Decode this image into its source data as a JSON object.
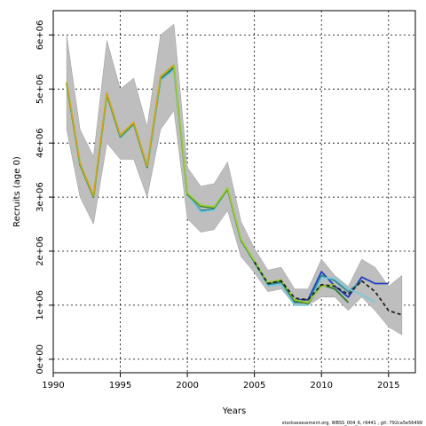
{
  "chart_data": {
    "type": "line",
    "title": "",
    "xlabel": "Years",
    "ylabel": "Recruits (age 0)",
    "xlim": [
      1990,
      2017
    ],
    "ylim": [
      -250000,
      6450000
    ],
    "x_ticks": [
      1990,
      1995,
      2000,
      2005,
      2010,
      2015
    ],
    "y_ticks": [
      0,
      1000000,
      2000000,
      3000000,
      4000000,
      5000000,
      6000000
    ],
    "y_tick_labels": [
      "0e+00",
      "1e+06",
      "2e+06",
      "3e+06",
      "4e+06",
      "5e+06",
      "6e+06"
    ],
    "grid": true,
    "footnote": "stockassessment.org, WBSS_004_6, r9441 , git: 792ca5e56499",
    "band": {
      "x": [
        1991,
        1992,
        1993,
        1994,
        1995,
        1996,
        1997,
        1998,
        1999,
        2000,
        2001,
        2002,
        2003,
        2004,
        2005,
        2006,
        2007,
        2008,
        2009,
        2010,
        2011,
        2012,
        2013,
        2014,
        2015,
        2016
      ],
      "upper": [
        6000000,
        4250000,
        3750000,
        5900000,
        5000000,
        5200000,
        4300000,
        6000000,
        6200000,
        3550000,
        3200000,
        3250000,
        3650000,
        2550000,
        2050000,
        1650000,
        1700000,
        1300000,
        1300000,
        1850000,
        1550000,
        1350000,
        1850000,
        1700000,
        1350000,
        1550000
      ],
      "lower": [
        4250000,
        3000000,
        2500000,
        4000000,
        3700000,
        3700000,
        3000000,
        4250000,
        4600000,
        2600000,
        2350000,
        2400000,
        2750000,
        1900000,
        1600000,
        1250000,
        1300000,
        1000000,
        1000000,
        1150000,
        1150000,
        900000,
        1150000,
        900000,
        600000,
        450000
      ],
      "color": "#bebebe"
    },
    "series": [
      {
        "color": "#1f3fbf",
        "width": 1.8,
        "dash": "",
        "x": [
          1991,
          1992,
          1993,
          1994,
          1995,
          1996,
          1997,
          1998,
          1999,
          2000,
          2001,
          2002,
          2003,
          2004,
          2005,
          2006,
          2007,
          2008,
          2009,
          2010,
          2011,
          2012,
          2013,
          2014,
          2015
        ],
        "y": [
          5100000,
          3600000,
          3000000,
          4900000,
          4100000,
          4350000,
          3550000,
          5200000,
          5400000,
          3050000,
          2850000,
          2800000,
          3150000,
          2200000,
          1800000,
          1400000,
          1450000,
          1100000,
          1100000,
          1620000,
          1350000,
          1150000,
          1520000,
          1400000,
          1400000
        ]
      },
      {
        "color": "#2e8b9a",
        "width": 1.8,
        "dash": "",
        "x": [
          1991,
          1992,
          1993,
          1994,
          1995,
          1996,
          1997,
          1998,
          1999,
          2000,
          2001,
          2002,
          2003,
          2004,
          2005,
          2006,
          2007,
          2008,
          2009,
          2010,
          2011,
          2012,
          2013
        ],
        "y": [
          5100000,
          3600000,
          3000000,
          4900000,
          4100000,
          4350000,
          3550000,
          5150000,
          5400000,
          3050000,
          2750000,
          2780000,
          3150000,
          2200000,
          1800000,
          1380000,
          1420000,
          1050000,
          1050000,
          1550000,
          1450000,
          1250000,
          1450000
        ]
      },
      {
        "color": "#7ec8d8",
        "width": 1.8,
        "dash": "",
        "x": [
          1991,
          1992,
          1993,
          1994,
          1995,
          1996,
          1997,
          1998,
          1999,
          2000,
          2001,
          2002,
          2003,
          2004,
          2005,
          2006,
          2007,
          2008,
          2009,
          2010,
          2011,
          2012,
          2013,
          2014
        ],
        "y": [
          5100000,
          3600000,
          3000000,
          4900000,
          4100000,
          4350000,
          3550000,
          5150000,
          5350000,
          3050000,
          2720000,
          2760000,
          3150000,
          2200000,
          1780000,
          1350000,
          1380000,
          1000000,
          1000000,
          1500000,
          1500000,
          1300000,
          1200000,
          1050000
        ]
      },
      {
        "color": "#2d7a2d",
        "width": 1.8,
        "dash": "",
        "x": [
          1991,
          1992,
          1993,
          1994,
          1995,
          1996,
          1997,
          1998,
          1999,
          2000,
          2001,
          2002,
          2003,
          2004,
          2005,
          2006,
          2007,
          2008,
          2009,
          2010,
          2011,
          2012
        ],
        "y": [
          5100000,
          3600000,
          3000000,
          4900000,
          4120000,
          4360000,
          3550000,
          5200000,
          5420000,
          3050000,
          2830000,
          2800000,
          3150000,
          2200000,
          1800000,
          1400000,
          1450000,
          1080000,
          1030000,
          1380000,
          1300000,
          1050000
        ]
      },
      {
        "color": "#9acd32",
        "width": 1.8,
        "dash": "",
        "x": [
          1991,
          1992,
          1993,
          1994,
          1995,
          1996,
          1997,
          1998,
          1999,
          2000,
          2001,
          2002,
          2003,
          2004,
          2005,
          2006,
          2007,
          2008,
          2009,
          2010,
          2011
        ],
        "y": [
          5120000,
          3620000,
          3020000,
          4920000,
          4140000,
          4380000,
          3570000,
          5220000,
          5440000,
          3070000,
          2850000,
          2820000,
          3170000,
          2220000,
          1820000,
          1420000,
          1470000,
          1100000,
          1050000,
          1350000,
          1380000
        ]
      },
      {
        "color": "#d4a017",
        "width": 1.4,
        "dash": "",
        "x": [
          1991,
          1992,
          1993,
          1994,
          1995,
          1996,
          1997,
          1998,
          1999
        ],
        "y": [
          5130000,
          3630000,
          3030000,
          4930000,
          4150000,
          4390000,
          3580000,
          5230000,
          5450000
        ]
      },
      {
        "color": "#222222",
        "width": 1.8,
        "dash": "4,3",
        "x": [
          2005,
          2006,
          2007,
          2008,
          2009,
          2010,
          2011,
          2012,
          2013,
          2014,
          2015,
          2016
        ],
        "y": [
          1800000,
          1400000,
          1450000,
          1130000,
          1100000,
          1380000,
          1350000,
          1200000,
          1450000,
          1250000,
          900000,
          820000
        ]
      }
    ]
  }
}
